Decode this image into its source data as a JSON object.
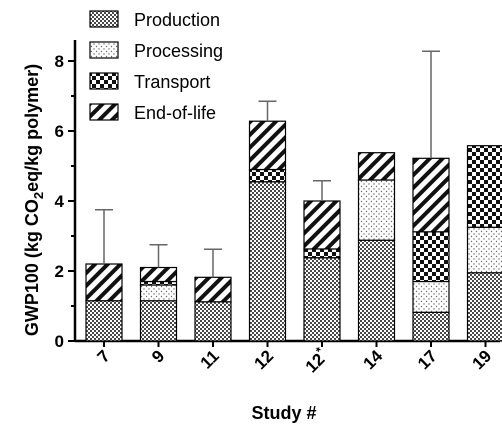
{
  "chart_data": {
    "type": "bar",
    "stacked": true,
    "title": "",
    "xlabel": "Study #",
    "ylabel": "GWP100 (kg CO2eq/kg polymer)",
    "ylabel_parts": {
      "pre": "GWP100 (kg CO",
      "sub": "2",
      "post": "eq/kg polymer)"
    },
    "ylim": [
      0,
      8.6
    ],
    "yticks": [
      "0",
      "2",
      "4",
      "6",
      "8"
    ],
    "categories": [
      "7",
      "9",
      "11",
      "12",
      "12",
      "14",
      "17",
      "19"
    ],
    "category_marks": [
      "",
      "",
      "",
      "",
      "*",
      "",
      "",
      ""
    ],
    "series": [
      {
        "name": "Production",
        "pattern": "checker",
        "values": [
          1.15,
          1.15,
          1.12,
          4.55,
          2.38,
          2.88,
          0.82,
          1.95
        ]
      },
      {
        "name": "Processing",
        "pattern": "dots",
        "values": [
          0.0,
          0.45,
          0.0,
          0.0,
          0.0,
          1.72,
          0.88,
          1.3
        ]
      },
      {
        "name": "Transport",
        "pattern": "bigcheck",
        "values": [
          0.0,
          0.1,
          0.0,
          0.35,
          0.25,
          0.0,
          1.42,
          2.33
        ]
      },
      {
        "name": "End-of-life",
        "pattern": "hatch",
        "values": [
          1.05,
          0.4,
          0.7,
          1.38,
          1.37,
          0.78,
          2.1,
          0.0
        ]
      }
    ],
    "error_top": [
      3.75,
      2.75,
      2.62,
      6.85,
      4.58,
      null,
      8.28,
      null
    ],
    "legend_position": "top-left",
    "grid": false
  }
}
